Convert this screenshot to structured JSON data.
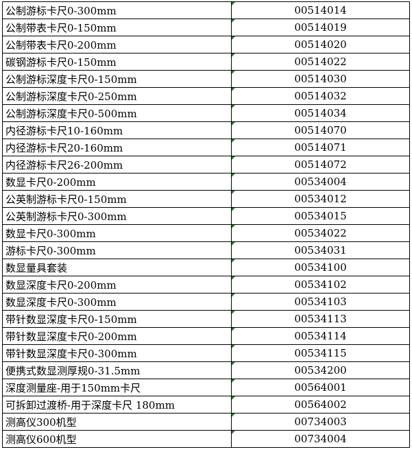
{
  "rows": [
    {
      "name": "公制游标卡尺0-300mm",
      "code": "00514014"
    },
    {
      "name": "公制带表卡尺0-150mm",
      "code": "00514019"
    },
    {
      "name": "公制带表卡尺0-200mm",
      "code": "00514020"
    },
    {
      "name": "碳钢游标卡尺0-150mm",
      "code": "00514022"
    },
    {
      "name": "公制游标深度卡尺0-150mm",
      "code": "00514030"
    },
    {
      "name": "公制游标深度卡尺0-250mm",
      "code": "00514032"
    },
    {
      "name": "公制游标深度卡尺0-500mm",
      "code": "00514034"
    },
    {
      "name": "内径游标卡尺10-160mm",
      "code": "00514070"
    },
    {
      "name": "内径游标卡尺20-160mm",
      "code": "00514071"
    },
    {
      "name": "内径游标卡尺26-200mm",
      "code": "00514072"
    },
    {
      "name": "数显卡尺0-200mm",
      "code": "00534004"
    },
    {
      "name": "公英制游标卡尺0-150mm",
      "code": "00534012"
    },
    {
      "name": "公英制游标卡尺0-300mm",
      "code": "00534015"
    },
    {
      "name": "数显卡尺0-300mm",
      "code": "00534022"
    },
    {
      "name": "游标卡尺0-300mm",
      "code": "00534031"
    },
    {
      "name": "数显量具套装",
      "code": "00534100"
    },
    {
      "name": "数显深度卡尺0-200mm",
      "code": "00534102"
    },
    {
      "name": "数显深度卡尺0-300mm",
      "code": "00534103"
    },
    {
      "name": "带针数显深度卡尺0-150mm",
      "code": "00534113"
    },
    {
      "name": "带针数显深度卡尺0-200mm",
      "code": "00534114"
    },
    {
      "name": "带针数显深度卡尺0-300mm",
      "code": "00534115"
    },
    {
      "name": "便携式数显测厚规0-31.5mm",
      "code": "00534200"
    },
    {
      "name": "深度测量座-用于150mm卡尺",
      "code": "00564001"
    },
    {
      "name": "可拆卸过渡桥-用于深度卡尺 180mm",
      "code": "00564002"
    },
    {
      "name": "测高仪300机型",
      "code": "00734003"
    },
    {
      "name": "测高仪600机型",
      "code": "00734004"
    }
  ],
  "colors": {
    "text_indicator": "#1f7a1f",
    "grid": "#000000"
  }
}
